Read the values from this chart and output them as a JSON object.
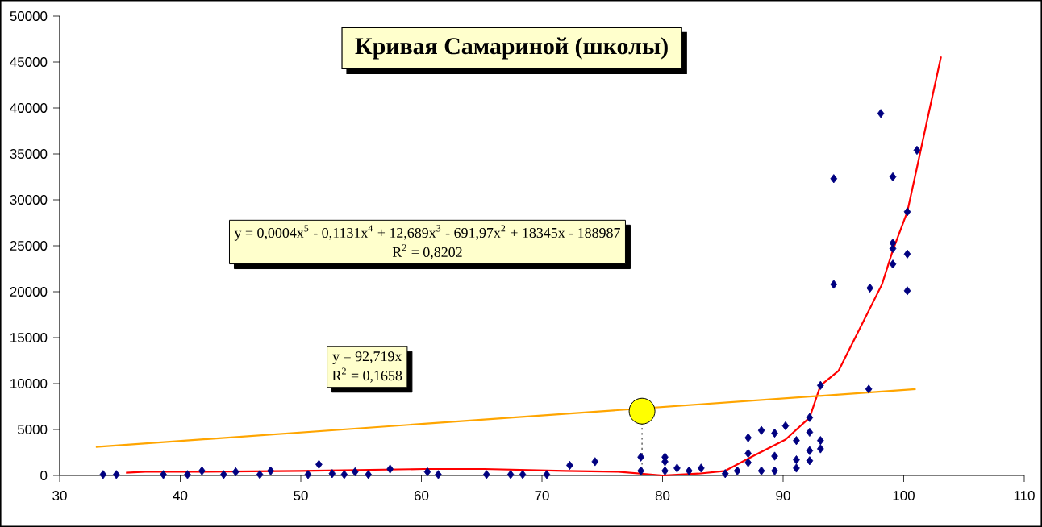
{
  "chart_data": {
    "type": "scatter",
    "title": "Кривая Самариной (школы)",
    "annotations": [
      "y = 0,0004x$^{5}$ - 0,1131x$^{4}$ + 12,689x$^{3}$ - 691,97x$^{2}$ + 18345x - 188987",
      "R$^{2}$ = 0,8202",
      "y = 92,719x",
      "R$^{2}$ = 0,1658"
    ],
    "xlim": [
      30,
      110
    ],
    "xticks": [
      30,
      40,
      50,
      60,
      70,
      80,
      90,
      100,
      110
    ],
    "ylim": [
      0,
      50000
    ],
    "yticks": [
      0,
      5000,
      10000,
      15000,
      20000,
      25000,
      30000,
      35000,
      40000,
      45000,
      50000
    ],
    "series": [
      {
        "type": "line",
        "color": "#ff0000",
        "marker": "none",
        "line_style": "solid",
        "x": [
          35.5,
          37.1,
          41.7,
          50,
          60.2,
          65.2,
          71.9,
          76.3,
          80,
          83,
          85.2,
          87.5,
          90.2,
          92.2,
          93.1,
          94.6,
          96.4,
          98.2,
          99.1,
          100.3,
          101.1,
          102,
          103.1
        ],
        "values": [
          300,
          400,
          400,
          500,
          700,
          700,
          500,
          400,
          0,
          200,
          500,
          2100,
          3900,
          6300,
          9800,
          11400,
          16100,
          20800,
          24500,
          28700,
          33500,
          39000,
          45600
        ]
      },
      {
        "type": "line",
        "color": "#ffa500",
        "marker": "none",
        "line_style": "solid",
        "x": [
          33,
          101
        ],
        "values": [
          3100,
          9400
        ]
      },
      {
        "type": "line",
        "color": "#404040",
        "marker": "none",
        "line_style": "dashed",
        "x": [
          30,
          78.3
        ],
        "values": [
          6800,
          6800
        ]
      },
      {
        "type": "line",
        "color": "#404040",
        "marker": "none",
        "line_style": "dotted",
        "x": [
          78.3,
          78.3
        ],
        "values": [
          6800,
          0
        ]
      },
      {
        "color": "#000080",
        "marker": "diamond",
        "x": [
          33.6,
          34.7,
          38.6,
          40.6,
          41.8,
          43.6,
          44.6,
          46.6,
          47.5,
          50.6,
          51.5,
          52.6,
          53.6,
          54.5,
          55.6,
          57.4,
          60.5,
          61.4,
          65.4,
          67.4,
          68.4,
          70.4,
          72.3,
          74.4,
          78.2,
          78.2,
          80.2,
          80.2,
          80.2,
          81.2,
          82.2,
          83.2,
          85.2,
          86.2,
          87.1,
          87.1,
          87.1,
          88.2,
          88.2,
          89.3,
          89.3,
          89.3,
          90.2,
          91.1,
          91.1,
          91.1,
          92.2,
          92.2,
          92.2,
          92.2,
          93.1,
          93.1,
          93.1,
          94.2,
          94.2,
          97.1,
          97.2,
          98.1,
          99.1,
          99.1,
          99.1,
          99.1,
          100.3,
          100.3,
          100.3,
          101.1
        ],
        "values": [
          100,
          100,
          100,
          100,
          500,
          100,
          400,
          100,
          500,
          100,
          1200,
          200,
          100,
          400,
          100,
          700,
          400,
          100,
          100,
          100,
          100,
          100,
          1100,
          1500,
          2000,
          500,
          2000,
          1500,
          500,
          800,
          500,
          800,
          200,
          500,
          4100,
          2400,
          1400,
          4900,
          500,
          4600,
          2100,
          500,
          5400,
          3800,
          1700,
          800,
          6300,
          4700,
          2700,
          1600,
          3800,
          2900,
          9800,
          32300,
          20800,
          9400,
          20400,
          39400,
          32500,
          25300,
          24700,
          23000,
          28700,
          24100,
          20100,
          35400
        ]
      },
      {
        "color": "#ffff00",
        "marker": "circle",
        "x": [
          78.3
        ],
        "values": [
          7000
        ]
      }
    ]
  }
}
